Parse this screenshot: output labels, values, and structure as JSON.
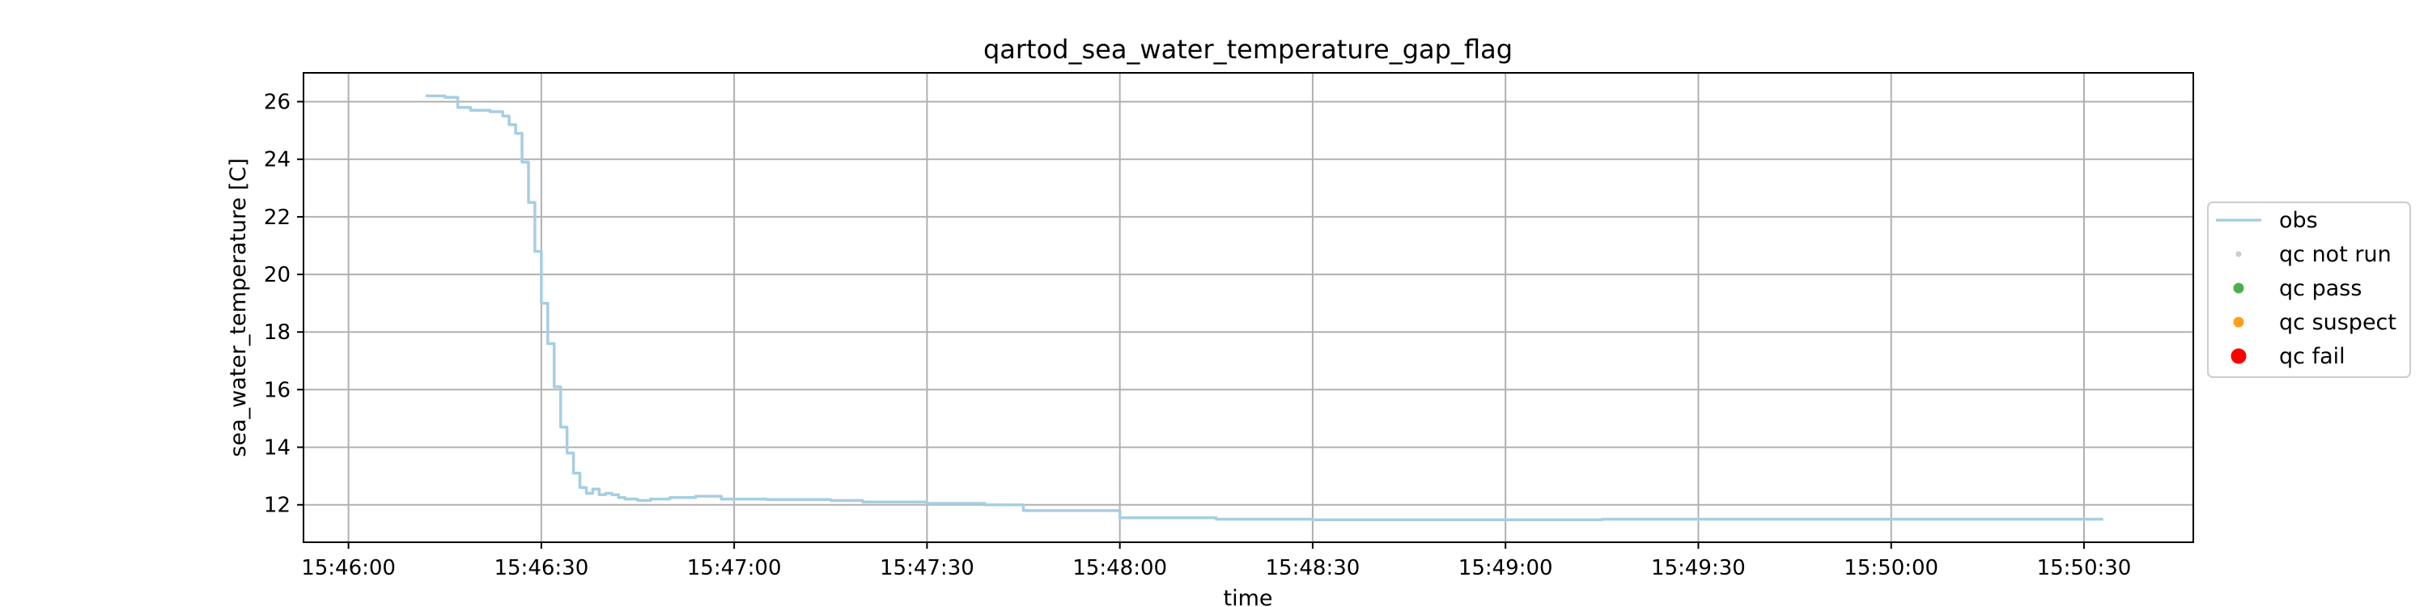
{
  "chart_data": {
    "type": "line",
    "title": "qartod_sea_water_temperature_gap_flag",
    "xlabel": "time",
    "ylabel": "sea_water_temperature [C]",
    "xlim": [
      "15:45:53",
      "15:50:47"
    ],
    "ylim": [
      10.7,
      27.0
    ],
    "grid": true,
    "x_ticks": [
      "15:46:00",
      "15:46:30",
      "15:47:00",
      "15:47:30",
      "15:48:00",
      "15:48:30",
      "15:49:00",
      "15:49:30",
      "15:50:00",
      "15:50:30"
    ],
    "y_ticks": [
      12,
      14,
      16,
      18,
      20,
      22,
      24,
      26
    ],
    "legend": {
      "placement": "center-right",
      "entries": [
        {
          "label": "obs",
          "kind": "line",
          "color": "#a6cee3"
        },
        {
          "label": "qc not run",
          "kind": "marker",
          "color": "#cccccc"
        },
        {
          "label": "qc pass",
          "kind": "marker",
          "color": "#4daf4a"
        },
        {
          "label": "qc suspect",
          "kind": "marker",
          "color": "#ff9f1c"
        },
        {
          "label": "qc fail",
          "kind": "marker",
          "color": "#ff0000"
        }
      ]
    },
    "series": [
      {
        "name": "obs",
        "color": "#a6cee3",
        "x": [
          "15:46:12",
          "15:46:15",
          "15:46:17",
          "15:46:19",
          "15:46:22",
          "15:46:24",
          "15:46:25",
          "15:46:26",
          "15:46:27",
          "15:46:28",
          "15:46:29",
          "15:46:30",
          "15:46:31",
          "15:46:32",
          "15:46:33",
          "15:46:34",
          "15:46:35",
          "15:46:36",
          "15:46:37",
          "15:46:38",
          "15:46:39",
          "15:46:40",
          "15:46:41",
          "15:46:42",
          "15:46:43",
          "15:46:45",
          "15:46:47",
          "15:46:50",
          "15:46:54",
          "15:46:58",
          "15:47:05",
          "15:47:15",
          "15:47:20",
          "15:47:30",
          "15:47:39",
          "15:47:45",
          "15:48:00",
          "15:48:15",
          "15:48:30",
          "15:49:00",
          "15:49:15",
          "15:49:30",
          "15:50:00",
          "15:50:20",
          "15:50:33"
        ],
        "y": [
          26.2,
          26.15,
          25.8,
          25.7,
          25.65,
          25.5,
          25.2,
          24.9,
          23.9,
          22.5,
          20.8,
          19.0,
          17.6,
          16.1,
          14.7,
          13.8,
          13.1,
          12.6,
          12.4,
          12.55,
          12.35,
          12.4,
          12.35,
          12.25,
          12.2,
          12.15,
          12.2,
          12.25,
          12.3,
          12.2,
          12.18,
          12.15,
          12.1,
          12.05,
          12.0,
          11.8,
          11.55,
          11.5,
          11.48,
          11.48,
          11.5,
          11.5,
          11.5,
          11.5,
          11.5
        ]
      }
    ]
  }
}
